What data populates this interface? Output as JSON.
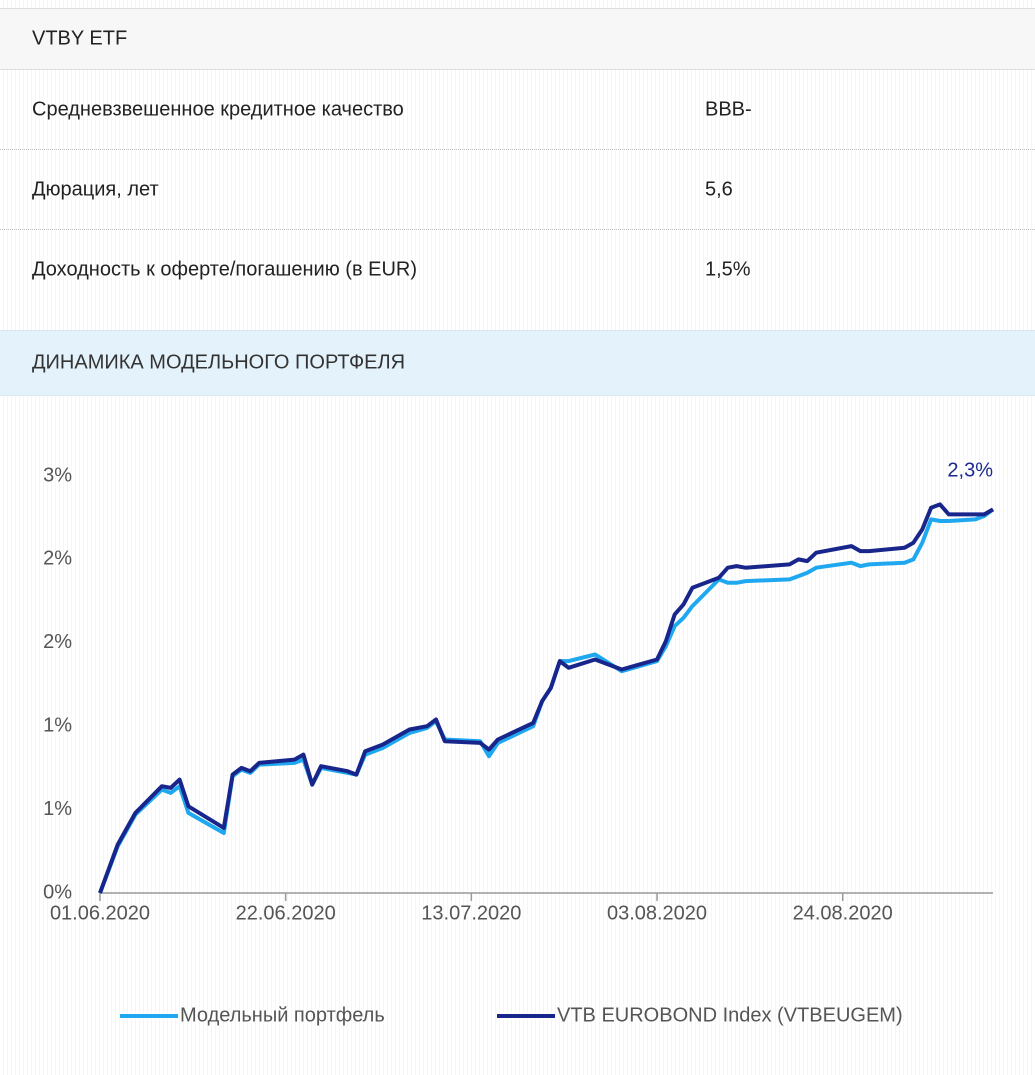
{
  "table": {
    "title": "VTBY ETF",
    "rows": [
      [
        "Средневзвешенное кредитное качество",
        "BBB-"
      ],
      [
        "Дюрация, лет",
        "5,6"
      ],
      [
        "Доходность к оферте/погашению (в EUR)",
        "1,5%"
      ]
    ]
  },
  "section_title": "ДИНАМИКА МОДЕЛЬНОГО ПОРТФЕЛЯ",
  "chart_data": {
    "type": "line",
    "x": [
      "01.06.2020",
      "03.06.2020",
      "05.06.2020",
      "08.06.2020",
      "09.06.2020",
      "10.06.2020",
      "11.06.2020",
      "15.06.2020",
      "16.06.2020",
      "17.06.2020",
      "18.06.2020",
      "19.06.2020",
      "23.06.2020",
      "24.06.2020",
      "25.06.2020",
      "26.06.2020",
      "29.06.2020",
      "30.06.2020",
      "01.07.2020",
      "03.07.2020",
      "06.07.2020",
      "08.07.2020",
      "09.07.2020",
      "10.07.2020",
      "14.07.2020",
      "15.07.2020",
      "16.07.2020",
      "20.07.2020",
      "21.07.2020",
      "22.07.2020",
      "23.07.2020",
      "24.07.2020",
      "27.07.2020",
      "30.07.2020",
      "03.08.2020",
      "04.08.2020",
      "05.08.2020",
      "06.08.2020",
      "07.08.2020",
      "10.08.2020",
      "11.08.2020",
      "12.08.2020",
      "13.08.2020",
      "18.08.2020",
      "19.08.2020",
      "20.08.2020",
      "21.08.2020",
      "25.08.2020",
      "26.08.2020",
      "27.08.2020",
      "31.08.2020",
      "01.09.2020",
      "02.09.2020",
      "03.09.2020",
      "04.09.2020",
      "05.09.2020",
      "08.09.2020",
      "09.09.2020",
      "10.09.2020"
    ],
    "series": [
      {
        "name": "Модельный портфель",
        "color": "#1fa8ef",
        "values": [
          0,
          0.28,
          0.47,
          0.62,
          0.6,
          0.64,
          0.48,
          0.36,
          0.7,
          0.74,
          0.72,
          0.77,
          0.78,
          0.8,
          0.65,
          0.75,
          0.72,
          0.71,
          0.83,
          0.87,
          0.96,
          0.99,
          1.03,
          0.92,
          0.91,
          0.82,
          0.9,
          1.0,
          1.15,
          1.23,
          1.39,
          1.39,
          1.43,
          1.33,
          1.39,
          1.48,
          1.6,
          1.65,
          1.72,
          1.88,
          1.86,
          1.86,
          1.87,
          1.88,
          1.9,
          1.92,
          1.95,
          1.98,
          1.96,
          1.97,
          1.98,
          2.0,
          2.1,
          2.24,
          2.23,
          2.23,
          2.24,
          2.26,
          2.3
        ]
      },
      {
        "name": "VTB EUROBOND Index (VTBEUGEM)",
        "color": "#18268c",
        "values": [
          0,
          0.29,
          0.48,
          0.64,
          0.63,
          0.68,
          0.52,
          0.39,
          0.71,
          0.75,
          0.73,
          0.78,
          0.8,
          0.83,
          0.65,
          0.76,
          0.73,
          0.71,
          0.85,
          0.89,
          0.98,
          1.0,
          1.04,
          0.91,
          0.9,
          0.86,
          0.92,
          1.02,
          1.15,
          1.23,
          1.39,
          1.35,
          1.4,
          1.34,
          1.4,
          1.51,
          1.67,
          1.73,
          1.83,
          1.89,
          1.95,
          1.96,
          1.95,
          1.97,
          2.0,
          1.99,
          2.04,
          2.08,
          2.05,
          2.05,
          2.07,
          2.1,
          2.18,
          2.31,
          2.33,
          2.27,
          2.27,
          2.27,
          2.3
        ]
      }
    ],
    "annotation": "2,3%",
    "xlim": [
      "01.06.2020",
      "10.09.2020"
    ],
    "xticks": [
      "01.06.2020",
      "22.06.2020",
      "13.07.2020",
      "03.08.2020",
      "24.08.2020"
    ],
    "ylim": [
      0,
      2.5
    ],
    "yticks": [
      {
        "value": 0,
        "label": "0%"
      },
      {
        "value": 0.5,
        "label": "1%"
      },
      {
        "value": 1,
        "label": "1%"
      },
      {
        "value": 1.5,
        "label": "2%"
      },
      {
        "value": 2,
        "label": "2%"
      },
      {
        "value": 2.5,
        "label": "3%"
      }
    ]
  }
}
